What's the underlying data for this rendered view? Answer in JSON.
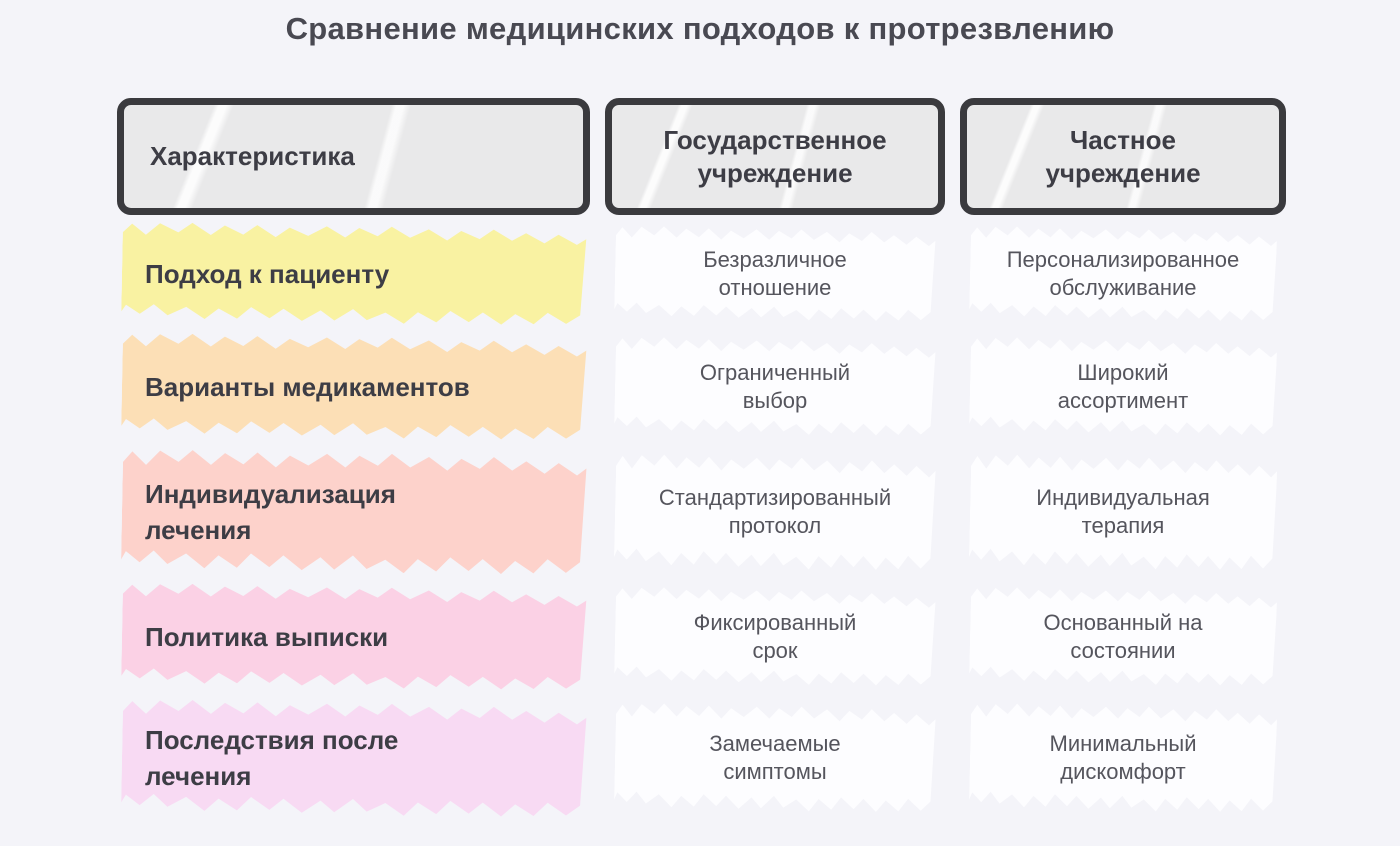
{
  "title": "Сравнение медицинских подходов к протрезвлению",
  "table": {
    "columns": [
      {
        "label": "Характеристика"
      },
      {
        "label": "Государственное\nучреждение"
      },
      {
        "label": "Частное\nучреждение"
      }
    ],
    "rows": [
      {
        "feature": "Подход к пациенту",
        "state": "Безразличное\nотношение",
        "private": "Персонализированное\nобслуживание",
        "highlight_color": "#f9f2a2"
      },
      {
        "feature": "Варианты медикаментов",
        "state": "Ограниченный\nвыбор",
        "private": "Широкий\nассортимент",
        "highlight_color": "#fcdfb6"
      },
      {
        "feature": "Индивидуализация\nлечения",
        "state": "Стандартизированный\nпротокол",
        "private": "Индивидуальная\nтерапия",
        "highlight_color": "#fdd2cb"
      },
      {
        "feature": "Политика выписки",
        "state": "Фиксированный\nсрок",
        "private": "Основанный на\nсостоянии",
        "highlight_color": "#fbd1e5"
      },
      {
        "feature": "Последствия после\nлечения",
        "state": "Замечаемые\nсимптомы",
        "private": "Минимальный\nдискомфорт",
        "highlight_color": "#f8daf3"
      }
    ]
  },
  "colors": {
    "background": "#f4f4f9",
    "header_fill": "#e9e9ea",
    "header_border": "#3a3a3e",
    "label_text": "#3d3d45",
    "value_text": "#55555d",
    "value_highlight": "#fdfdff"
  }
}
